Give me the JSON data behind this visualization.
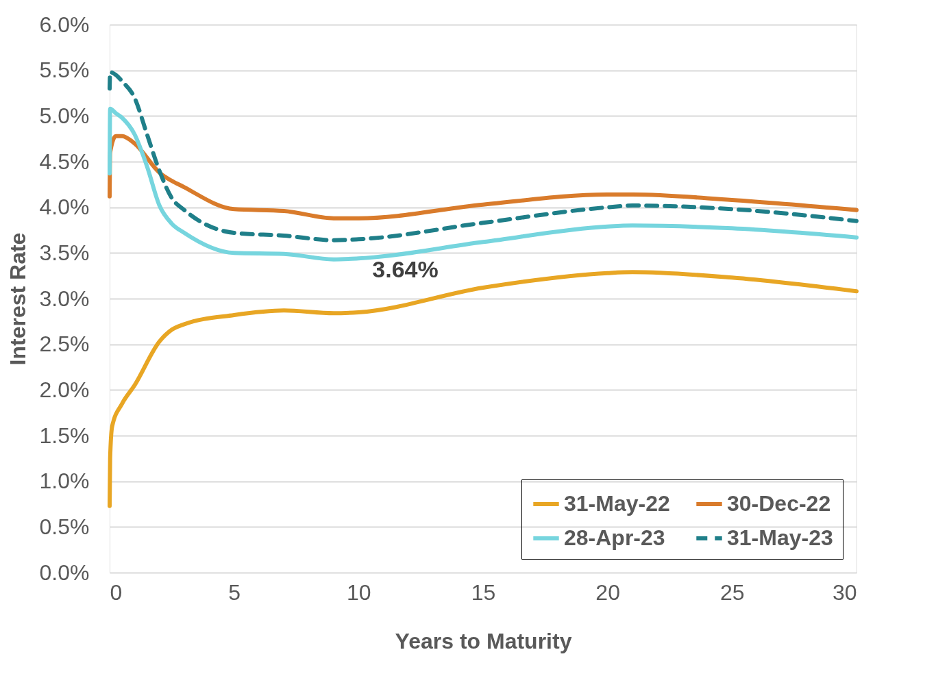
{
  "chart_data": {
    "type": "line",
    "xlabel": "Years to Maturity",
    "ylabel": "Interest Rate",
    "xlim": [
      0,
      30
    ],
    "xticks": [
      0,
      5,
      10,
      15,
      20,
      25,
      30
    ],
    "ylim": [
      0,
      6
    ],
    "yticks": [
      {
        "value": 0,
        "label": "0.0%"
      },
      {
        "value": 0.5,
        "label": "0.5%"
      },
      {
        "value": 1,
        "label": "1.0%"
      },
      {
        "value": 1.5,
        "label": "1.5%"
      },
      {
        "value": 2,
        "label": "2.0%"
      },
      {
        "value": 2.5,
        "label": "2.5%"
      },
      {
        "value": 3,
        "label": "3.0%"
      },
      {
        "value": 3.5,
        "label": "3.5%"
      },
      {
        "value": 4,
        "label": "4.0%"
      },
      {
        "value": 4.5,
        "label": "4.5%"
      },
      {
        "value": 5,
        "label": "5.0%"
      },
      {
        "value": 5.5,
        "label": "5.5%"
      },
      {
        "value": 6,
        "label": "6.0%"
      }
    ],
    "grid": "y",
    "legend": "bottom right",
    "marker": "none",
    "annotations": [
      {
        "text": "3.64%",
        "x": 10,
        "y": 3.64
      }
    ],
    "series": [
      {
        "name": "31-May-22",
        "color": "#e8a624",
        "line_style": "solid",
        "x": [
          0,
          0.02,
          0.1,
          0.5,
          1,
          2,
          2.5,
          3,
          5,
          7,
          9,
          10,
          15,
          20,
          21,
          25,
          30
        ],
        "values": [
          0.73,
          1.25,
          1.6,
          1.85,
          2.05,
          2.53,
          2.66,
          2.72,
          2.82,
          2.87,
          2.84,
          2.85,
          3.12,
          3.28,
          3.29,
          3.23,
          3.08
        ]
      },
      {
        "name": "30-Dec-22",
        "color": "#d97b2b",
        "line_style": "solid",
        "x": [
          0,
          0.02,
          0.25,
          0.5,
          1,
          2,
          3,
          5,
          7,
          9,
          10,
          15,
          20,
          21,
          25,
          30
        ],
        "values": [
          4.12,
          4.6,
          4.78,
          4.78,
          4.7,
          4.38,
          4.22,
          3.98,
          3.96,
          3.88,
          3.88,
          4.03,
          4.14,
          4.14,
          4.08,
          3.97
        ]
      },
      {
        "name": "28-Apr-23",
        "color": "#76d5de",
        "line_style": "solid",
        "x": [
          0,
          0.02,
          0.25,
          0.5,
          1,
          1.5,
          2,
          2.5,
          3,
          5,
          7,
          9,
          10,
          15,
          20,
          21,
          25,
          30
        ],
        "values": [
          4.37,
          5.08,
          5.03,
          4.98,
          4.8,
          4.45,
          4.02,
          3.82,
          3.72,
          3.5,
          3.49,
          3.43,
          3.44,
          3.62,
          3.79,
          3.8,
          3.77,
          3.67
        ]
      },
      {
        "name": "31-May-23",
        "color": "#1f7f89",
        "line_style": "dashed",
        "x": [
          0,
          0.02,
          0.25,
          0.5,
          1,
          1.5,
          2,
          2.5,
          3,
          5,
          7,
          9,
          10,
          15,
          20,
          21,
          25,
          30
        ],
        "values": [
          5.3,
          5.48,
          5.45,
          5.38,
          5.2,
          4.8,
          4.4,
          4.1,
          3.97,
          3.72,
          3.69,
          3.64,
          3.65,
          3.83,
          4.0,
          4.02,
          3.98,
          3.85
        ]
      }
    ]
  }
}
